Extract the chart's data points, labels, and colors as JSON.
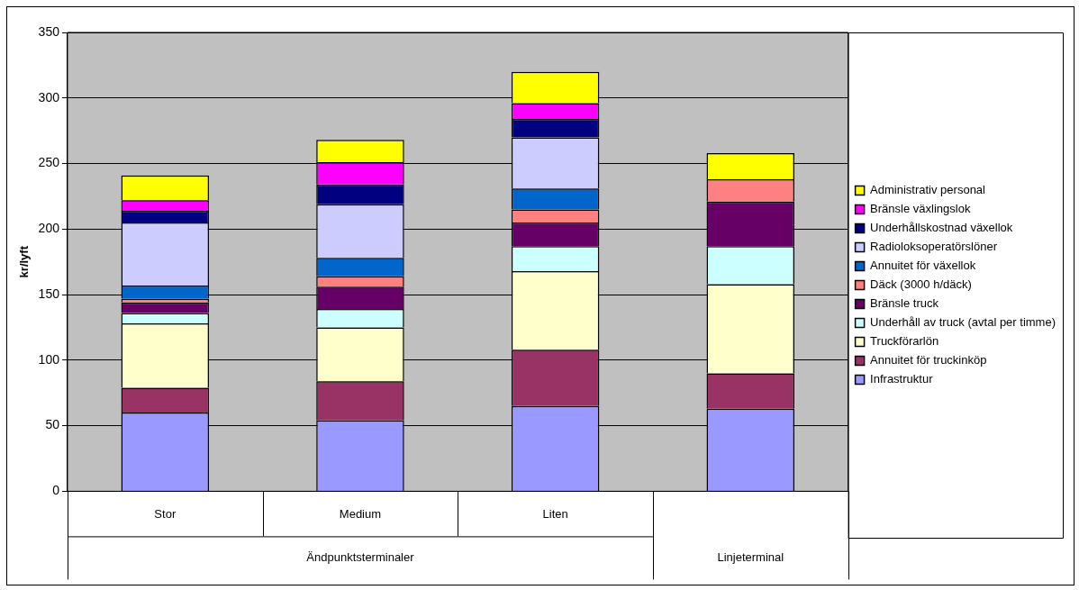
{
  "chart_data": {
    "type": "bar",
    "stacked": true,
    "ylabel": "kr/lyft",
    "categories": [
      "Stor",
      "Medium",
      "Liten",
      null
    ],
    "annotations": [
      "Ändpunktsterminaler",
      "Linjeterminal"
    ],
    "ylim": [
      0,
      350
    ],
    "yticks": [
      0,
      50,
      100,
      150,
      200,
      250,
      300,
      350
    ],
    "grid": "y",
    "legend": "right",
    "series": [
      {
        "name": "Infrastruktur",
        "color": "#9999ff",
        "values": [
          60,
          54,
          65,
          63
        ]
      },
      {
        "name": "Annuitet för truckinköp",
        "color": "#993366",
        "values": [
          19,
          30,
          43,
          27
        ]
      },
      {
        "name": "Truckförarlön",
        "color": "#ffffcc",
        "values": [
          49,
          41,
          60,
          68
        ]
      },
      {
        "name": "Underhåll av truck (avtal per timme)",
        "color": "#ccffff",
        "values": [
          8,
          14,
          19,
          29
        ]
      },
      {
        "name": "Bränsle truck",
        "color": "#660066",
        "values": [
          8,
          17,
          18,
          34
        ]
      },
      {
        "name": "Däck (3000 h/däck)",
        "color": "#ff8080",
        "values": [
          3,
          8,
          10,
          17
        ]
      },
      {
        "name": "Annuitet för växellok",
        "color": "#0066cc",
        "values": [
          10,
          14,
          16,
          null
        ]
      },
      {
        "name": "Radioloksoperatörslöner",
        "color": "#ccccff",
        "values": [
          48,
          41,
          39,
          null
        ]
      },
      {
        "name": "Underhållskostnad växellok",
        "color": "#000080",
        "values": [
          9,
          15,
          14,
          null
        ]
      },
      {
        "name": "Bränsle växlingslok",
        "color": "#ff00ff",
        "values": [
          8,
          17,
          12,
          null
        ]
      },
      {
        "name": "Administrativ personal",
        "color": "#ffff00",
        "values": [
          19,
          17,
          24,
          20
        ]
      }
    ]
  }
}
